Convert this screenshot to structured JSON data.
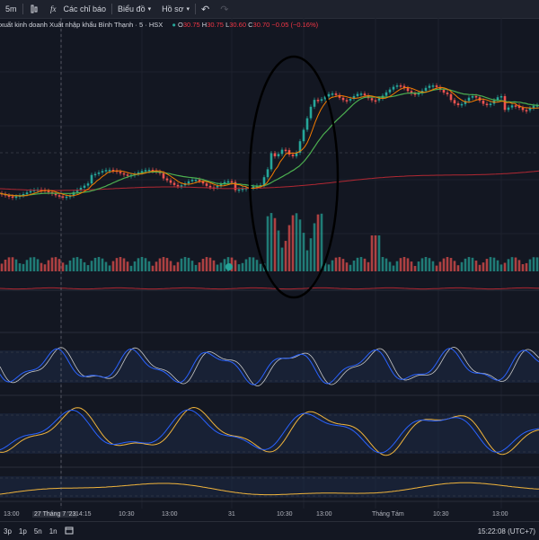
{
  "toolbar": {
    "interval": "5m",
    "indicators_label": "Các chỉ báo",
    "chart_label": "Biểu đồ",
    "profile_label": "Hồ sơ"
  },
  "legend": {
    "title": "xuất kinh doanh Xuất nhập khẩu Bình Thạnh · 5 · HSX",
    "o_label": "O",
    "o_value": "30.75",
    "h_label": "H",
    "h_value": "30.75",
    "l_label": "L",
    "l_value": "30.60",
    "c_label": "C",
    "c_value": "30.70",
    "change": "−0.05 (−0.16%)"
  },
  "time_axis": {
    "labels": [
      "13:00",
      "27 Tháng 7 '23",
      "14:15",
      "10:30",
      "13:00",
      "31",
      "10:30",
      "13:00",
      "Tháng Tám",
      "10:30",
      "13:00"
    ]
  },
  "bottom_bar": {
    "ranges": [
      "3p",
      "1p",
      "5n",
      "1n"
    ],
    "clock": "15:22:08 (UTC+7)"
  },
  "colors": {
    "up": "#26a69a",
    "down": "#ef5350",
    "ma_fast": "#f57c00",
    "ma_mid": "#4caf50",
    "ma_slow": "#b22833",
    "osc_a": "#2962ff",
    "osc_b": "#f0b43c"
  }
}
